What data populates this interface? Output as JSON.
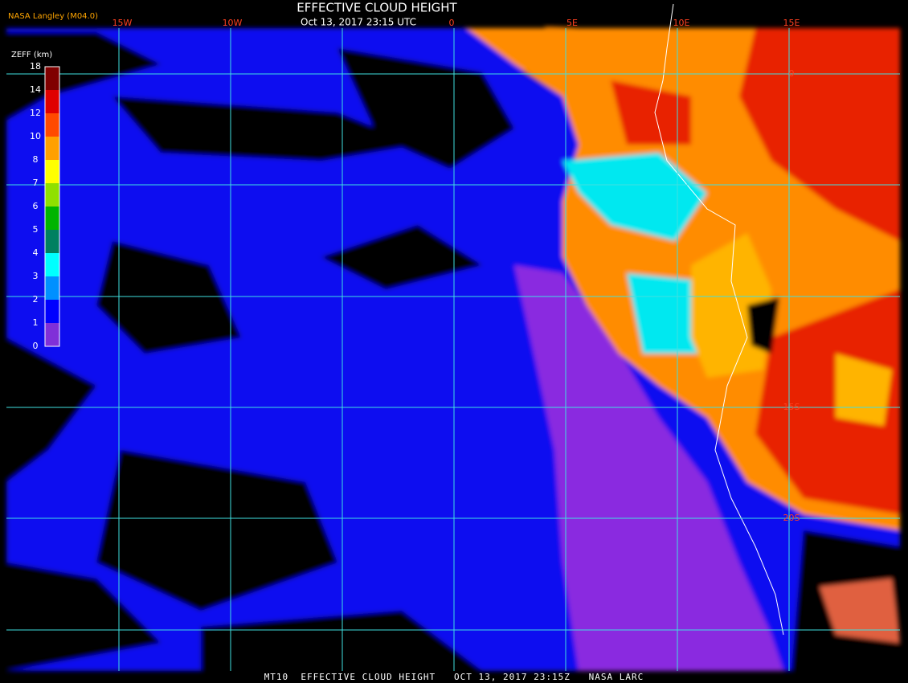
{
  "header": {
    "title": "EFFECTIVE CLOUD HEIGHT",
    "datetime": "Oct 13, 2017 23:15 UTC",
    "credit": "NASA Langley (M04.0)"
  },
  "colorbar": {
    "title": "ZEFF (km)",
    "levels": [
      18,
      14,
      12,
      10,
      8,
      7,
      6,
      5,
      4,
      3,
      2,
      1,
      0
    ],
    "colors": [
      "#800000",
      "#e00000",
      "#ff4a00",
      "#ffa000",
      "#ffff00",
      "#90e000",
      "#00b400",
      "#008060",
      "#00ffff",
      "#0090ff",
      "#0000ff",
      "#8030d8"
    ]
  },
  "longitude_labels": [
    "15W",
    "10W",
    "0",
    "5E",
    "10E",
    "15E"
  ],
  "latitude_labels": [
    "0",
    "15S",
    "20S"
  ],
  "footer": "MT10  EFFECTIVE CLOUD HEIGHT   OCT 13, 2017 23:15Z   NASA LARC"
}
